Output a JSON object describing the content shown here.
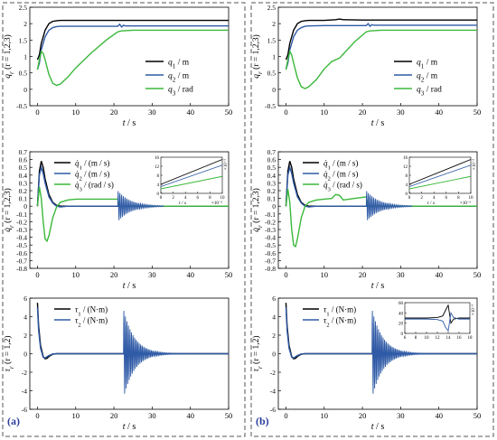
{
  "panels": [
    {
      "label": "(a)"
    },
    {
      "label": "(b)"
    }
  ],
  "colors": {
    "black": "#000000",
    "blue": "#2f5aa6",
    "green": "#3ab83a",
    "panel_label": "#2a3d9b",
    "frame": "#555555"
  },
  "chart_data": [
    {
      "panel": "(a)",
      "row": 1,
      "type": "line",
      "xlabel": "t / s",
      "ylabel": "q_r (r = 1,2,3)",
      "xlim": [
        -2,
        50
      ],
      "ylim": [
        -0.5,
        2.5
      ],
      "xticks": [
        0,
        10,
        20,
        30,
        40,
        50
      ],
      "yticks": [
        -0.5,
        0.0,
        0.5,
        1.0,
        1.5,
        2.0,
        2.5
      ],
      "legend": "right",
      "series": [
        {
          "name": "q1 / m",
          "color": "#000000",
          "x": [
            0,
            0.5,
            1,
            2,
            3,
            4,
            5,
            6,
            10,
            20,
            50
          ],
          "y": [
            0.9,
            1.05,
            1.4,
            1.8,
            2.0,
            2.07,
            2.09,
            2.1,
            2.1,
            2.1,
            2.1
          ]
        },
        {
          "name": "q2 / m",
          "color": "#2f5aa6",
          "x": [
            0,
            0.5,
            1,
            2,
            3,
            4,
            5,
            6,
            10,
            20,
            21,
            21.5,
            22,
            22.5,
            23,
            50
          ],
          "y": [
            0.6,
            0.8,
            1.2,
            1.6,
            1.8,
            1.88,
            1.91,
            1.92,
            1.92,
            1.92,
            1.92,
            1.98,
            1.9,
            1.95,
            1.93,
            1.93
          ]
        },
        {
          "name": "q3 / rad",
          "color": "#3ab83a",
          "x": [
            0,
            0.5,
            1,
            1.5,
            2,
            3,
            4,
            5,
            6,
            8,
            10,
            14,
            18,
            21,
            22,
            25,
            50
          ],
          "y": [
            0.6,
            0.9,
            1.15,
            1.1,
            0.9,
            0.45,
            0.18,
            0.12,
            0.16,
            0.38,
            0.65,
            1.1,
            1.5,
            1.75,
            1.78,
            1.8,
            1.8
          ]
        }
      ]
    },
    {
      "panel": "(a)",
      "row": 2,
      "type": "line",
      "xlabel": "t / s",
      "ylabel": "q̇_r (r = 1,2,3)",
      "xlim": [
        -2,
        50
      ],
      "ylim": [
        -0.8,
        0.7
      ],
      "xticks": [
        0,
        10,
        20,
        30,
        40,
        50
      ],
      "yticks": [
        -0.8,
        -0.7,
        -0.6,
        -0.5,
        -0.4,
        -0.3,
        -0.2,
        -0.1,
        0.0,
        0.1,
        0.2,
        0.3,
        0.4,
        0.5,
        0.6,
        0.7
      ],
      "legend": "top-left",
      "series": [
        {
          "name": "q̇1 / (m / s)",
          "color": "#000000",
          "x": [
            0,
            0.5,
            1,
            1.5,
            2,
            3,
            4,
            5,
            6,
            8,
            50
          ],
          "y": [
            0.0,
            0.45,
            0.58,
            0.5,
            0.35,
            0.15,
            0.05,
            0.01,
            0.0,
            0.0,
            0.0
          ]
        },
        {
          "name": "q̇2 / (m / s)",
          "color": "#2f5aa6",
          "x": [
            0,
            0.5,
            1,
            1.5,
            2,
            3,
            4,
            5,
            6,
            8,
            50
          ],
          "y": [
            0.0,
            0.4,
            0.5,
            0.42,
            0.3,
            0.12,
            0.04,
            0.0,
            -0.01,
            0.0,
            0.0
          ]
        },
        {
          "name": "q̇3 / (rad / s)",
          "color": "#3ab83a",
          "x": [
            0,
            0.5,
            1,
            1.5,
            2,
            2.5,
            3,
            4,
            5,
            6,
            8,
            10,
            15,
            20,
            21,
            21.5,
            22,
            50
          ],
          "y": [
            0.0,
            0.25,
            0.1,
            -0.2,
            -0.42,
            -0.45,
            -0.38,
            -0.15,
            -0.01,
            0.05,
            0.08,
            0.09,
            0.09,
            0.09,
            0.09,
            0.0,
            0.0,
            0.0
          ]
        }
      ],
      "oscillation": {
        "start": 21,
        "end": 33,
        "amplitude": 0.2,
        "period": 0.45,
        "decay": 0.3
      },
      "inset": {
        "xlim": [
          0,
          10
        ],
        "ylim": [
          0,
          16
        ],
        "xticks": [
          0,
          2,
          4,
          6,
          8,
          10
        ],
        "yticks": [
          0,
          4,
          8,
          12,
          16
        ],
        "xtick_labels": [
          "0",
          "2",
          "4",
          "6",
          "8",
          "10"
        ],
        "ytick_labels": [
          "0",
          "4",
          "8",
          "12",
          "16"
        ],
        "xlabel": "t / s",
        "x_scale": "×10⁻²",
        "y_scale": "×10⁻²",
        "lines": [
          {
            "color": "#000000",
            "x": [
              0,
              10
            ],
            "y": [
              4,
              15
            ]
          },
          {
            "color": "#2f5aa6",
            "x": [
              0,
              10
            ],
            "y": [
              3,
              12.5
            ]
          },
          {
            "color": "#3ab83a",
            "x": [
              0,
              10
            ],
            "y": [
              2,
              7.5
            ]
          }
        ]
      }
    },
    {
      "panel": "(a)",
      "row": 3,
      "type": "line",
      "xlabel": "t / s",
      "ylabel": "τ_r (r = 1,2)",
      "xlim": [
        -2,
        50
      ],
      "ylim": [
        -6,
        6
      ],
      "xticks": [
        0,
        10,
        20,
        30,
        40,
        50
      ],
      "yticks": [
        -6,
        -4,
        -2,
        0,
        2,
        4,
        6
      ],
      "legend": "top-left",
      "series": [
        {
          "name": "τ1 / (N·m)",
          "color": "#000000",
          "x": [
            0,
            0.3,
            0.8,
            1.5,
            2,
            2.5,
            3,
            4,
            5,
            50
          ],
          "y": [
            5.5,
            3.0,
            0.9,
            -0.3,
            -0.55,
            -0.5,
            -0.3,
            -0.05,
            0.0,
            0.0
          ]
        },
        {
          "name": "τ2 / (N·m)",
          "color": "#2f5aa6",
          "x": [
            0,
            0.3,
            0.8,
            1.5,
            2,
            3,
            4,
            5,
            50
          ],
          "y": [
            5.0,
            2.5,
            0.6,
            -0.4,
            -0.45,
            -0.2,
            -0.02,
            0.0,
            0.0
          ]
        }
      ],
      "oscillation": {
        "start": 22.5,
        "end": 40,
        "amplitude": 4.8,
        "period": 0.4,
        "decay": 0.35
      }
    },
    {
      "panel": "(b)",
      "row": 1,
      "type": "line",
      "xlabel": "t / s",
      "ylabel": "q_r (r = 1,2,3)",
      "xlim": [
        -2,
        50
      ],
      "ylim": [
        -0.5,
        2.5
      ],
      "xticks": [
        0,
        10,
        20,
        30,
        40,
        50
      ],
      "yticks": [
        -0.5,
        0.0,
        0.5,
        1.0,
        1.5,
        2.0,
        2.5
      ],
      "legend": "right",
      "series": [
        {
          "name": "q1 / m",
          "color": "#000000",
          "x": [
            0,
            0.5,
            1,
            2,
            3,
            4,
            5,
            6,
            10,
            13,
            14,
            15,
            20,
            50
          ],
          "y": [
            0.9,
            1.05,
            1.4,
            1.8,
            2.0,
            2.07,
            2.09,
            2.1,
            2.1,
            2.12,
            2.14,
            2.12,
            2.11,
            2.11
          ]
        },
        {
          "name": "q2 / m",
          "color": "#2f5aa6",
          "x": [
            0,
            0.5,
            1,
            2,
            3,
            4,
            5,
            6,
            10,
            20,
            21,
            21.5,
            22,
            22.5,
            23,
            50
          ],
          "y": [
            0.6,
            0.8,
            1.2,
            1.6,
            1.8,
            1.88,
            1.92,
            1.93,
            1.94,
            1.94,
            1.94,
            2.0,
            1.92,
            1.97,
            1.95,
            1.95
          ]
        },
        {
          "name": "q3 / rad",
          "color": "#3ab83a",
          "x": [
            0,
            0.5,
            1,
            1.5,
            2,
            3,
            4,
            5,
            6,
            8,
            10,
            12,
            14,
            18,
            21,
            22,
            25,
            50
          ],
          "y": [
            0.6,
            0.9,
            1.15,
            1.05,
            0.8,
            0.35,
            0.08,
            0.02,
            0.08,
            0.3,
            0.62,
            0.85,
            0.95,
            1.45,
            1.75,
            1.78,
            1.8,
            1.8
          ]
        }
      ]
    },
    {
      "panel": "(b)",
      "row": 2,
      "type": "line",
      "xlabel": "t / s",
      "ylabel": "q̇_r (r = 1,2,3)",
      "xlim": [
        -2,
        50
      ],
      "ylim": [
        -0.8,
        0.7
      ],
      "xticks": [
        0,
        10,
        20,
        30,
        40,
        50
      ],
      "yticks": [
        -0.8,
        -0.7,
        -0.6,
        -0.5,
        -0.4,
        -0.3,
        -0.2,
        -0.1,
        0.0,
        0.1,
        0.2,
        0.3,
        0.4,
        0.5,
        0.6,
        0.7
      ],
      "legend": "top-left",
      "series": [
        {
          "name": "q̇1 / (m / s)",
          "color": "#000000",
          "x": [
            0,
            0.5,
            1,
            1.5,
            2,
            3,
            4,
            5,
            6,
            8,
            50
          ],
          "y": [
            0.0,
            0.45,
            0.58,
            0.5,
            0.35,
            0.15,
            0.05,
            0.01,
            0.0,
            0.0,
            0.0
          ]
        },
        {
          "name": "q̇2 / (m / s)",
          "color": "#2f5aa6",
          "x": [
            0,
            0.5,
            1,
            1.5,
            2,
            3,
            4,
            5,
            6,
            8,
            50
          ],
          "y": [
            0.0,
            0.4,
            0.5,
            0.42,
            0.3,
            0.12,
            0.04,
            0.0,
            -0.01,
            0.0,
            0.0
          ]
        },
        {
          "name": "q̇3 / (rad / s)",
          "color": "#3ab83a",
          "x": [
            0,
            0.5,
            1,
            1.5,
            2,
            2.5,
            3,
            4,
            5,
            6,
            8,
            10,
            12,
            13,
            14,
            15,
            18,
            21,
            21.5,
            22,
            50
          ],
          "y": [
            0.0,
            0.22,
            0.05,
            -0.3,
            -0.5,
            -0.52,
            -0.42,
            -0.15,
            0.0,
            0.05,
            0.08,
            0.09,
            0.1,
            0.15,
            0.14,
            0.08,
            0.1,
            0.12,
            0.0,
            0.0,
            0.0
          ]
        }
      ],
      "oscillation": {
        "start": 21,
        "end": 33,
        "amplitude": 0.2,
        "period": 0.45,
        "decay": 0.3
      },
      "inset": {
        "xlim": [
          0,
          10
        ],
        "ylim": [
          0,
          16
        ],
        "xticks": [
          0,
          2,
          4,
          6,
          8,
          10
        ],
        "yticks": [
          0,
          4,
          8,
          12,
          16
        ],
        "xtick_labels": [
          "0",
          "2",
          "4",
          "6",
          "8",
          "10"
        ],
        "ytick_labels": [
          "0",
          "4",
          "8",
          "12",
          "16"
        ],
        "xlabel": "t / s",
        "x_scale": "×10⁻²",
        "y_scale": "×10⁻²",
        "lines": [
          {
            "color": "#000000",
            "x": [
              0,
              10
            ],
            "y": [
              4,
              15
            ]
          },
          {
            "color": "#2f5aa6",
            "x": [
              0,
              10
            ],
            "y": [
              3,
              12.5
            ]
          },
          {
            "color": "#3ab83a",
            "x": [
              0,
              10
            ],
            "y": [
              2,
              7.5
            ]
          }
        ]
      }
    },
    {
      "panel": "(b)",
      "row": 3,
      "type": "line",
      "xlabel": "t / s",
      "ylabel": "τ_r (r = 1,2)",
      "xlim": [
        -2,
        50
      ],
      "ylim": [
        -6,
        6
      ],
      "xticks": [
        0,
        10,
        20,
        30,
        40,
        50
      ],
      "yticks": [
        -6,
        -4,
        -2,
        0,
        2,
        4,
        6
      ],
      "legend": "top-left",
      "series": [
        {
          "name": "τ1 / (N·m)",
          "color": "#000000",
          "x": [
            0,
            0.3,
            0.8,
            1.5,
            2,
            2.5,
            3,
            4,
            5,
            50
          ],
          "y": [
            5.5,
            3.0,
            0.9,
            -0.3,
            -0.55,
            -0.5,
            -0.3,
            -0.05,
            0.0,
            0.0
          ]
        },
        {
          "name": "τ2 / (N·m)",
          "color": "#2f5aa6",
          "x": [
            0,
            0.3,
            0.8,
            1.5,
            2,
            3,
            4,
            5,
            50
          ],
          "y": [
            5.0,
            2.5,
            0.6,
            -0.4,
            -0.45,
            -0.2,
            -0.02,
            0.0,
            0.0
          ]
        }
      ],
      "oscillation": {
        "start": 22.5,
        "end": 40,
        "amplitude": 4.8,
        "period": 0.4,
        "decay": 0.35
      },
      "inset": {
        "xlim": [
          6,
          18
        ],
        "ylim": [
          0,
          60
        ],
        "xticks": [
          6,
          8,
          10,
          12,
          14,
          16,
          18
        ],
        "yticks": [
          0,
          20,
          40,
          60
        ],
        "xtick_labels": [
          "6",
          "8",
          "10",
          "12",
          "14",
          "16",
          "18"
        ],
        "ytick_labels": [
          "0",
          "20",
          "40",
          "60"
        ],
        "xlabel": "",
        "x_scale": "",
        "y_scale": "×10⁻²",
        "lines": [
          {
            "color": "#000000",
            "x": [
              6,
              8,
              10,
              12,
              13,
              13.5,
              14,
              14.5,
              15,
              16,
              18
            ],
            "y": [
              30,
              30,
              30,
              31,
              34,
              45,
              55,
              20,
              28,
              30,
              30
            ]
          },
          {
            "color": "#2f5aa6",
            "x": [
              6,
              8,
              10,
              12,
              13,
              13.5,
              14,
              14.5,
              15,
              16,
              18
            ],
            "y": [
              28,
              28,
              28,
              27,
              24,
              12,
              5,
              40,
              31,
              28,
              28
            ]
          }
        ]
      }
    }
  ]
}
